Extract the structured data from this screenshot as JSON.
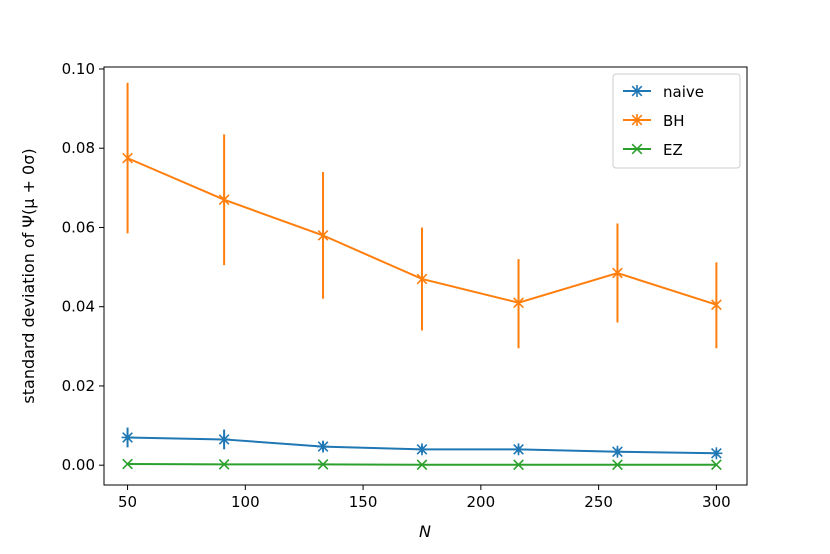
{
  "chart_data": {
    "type": "line",
    "title": "",
    "xlabel": "N",
    "ylabel": "standard deviation of Ψ(μ + 0σ)",
    "xlim": [
      40,
      313
    ],
    "ylim": [
      -0.005,
      0.1005
    ],
    "xticks": [
      50,
      100,
      150,
      200,
      250,
      300
    ],
    "xtick_labels": [
      "50",
      "100",
      "150",
      "200",
      "250",
      "300"
    ],
    "yticks": [
      0.0,
      0.02,
      0.04,
      0.06,
      0.08,
      0.1
    ],
    "ytick_labels": [
      "0.00",
      "0.02",
      "0.04",
      "0.06",
      "0.08",
      "0.10"
    ],
    "grid": false,
    "legend_position": "top-right",
    "x": [
      50,
      91,
      133,
      175,
      216,
      258,
      300
    ],
    "series": [
      {
        "name": "naive",
        "color": "#1f77b4",
        "marker": "star",
        "values": [
          0.007,
          0.0065,
          0.0047,
          0.004,
          0.004,
          0.0034,
          0.003
        ],
        "err_low": [
          0.0045,
          0.004,
          0.0035,
          0.003,
          0.003,
          0.0025,
          0.0022
        ],
        "err_high": [
          0.0095,
          0.009,
          0.006,
          0.005,
          0.005,
          0.0043,
          0.0039
        ]
      },
      {
        "name": "BH",
        "color": "#ff7f0e",
        "marker": "x-star",
        "values": [
          0.0775,
          0.067,
          0.058,
          0.047,
          0.041,
          0.0485,
          0.0405
        ],
        "err_low": [
          0.0585,
          0.0505,
          0.042,
          0.034,
          0.0295,
          0.036,
          0.0295
        ],
        "err_high": [
          0.0965,
          0.0835,
          0.074,
          0.06,
          0.052,
          0.061,
          0.0512
        ]
      },
      {
        "name": "EZ",
        "color": "#2ca02c",
        "marker": "x",
        "values": [
          0.0003,
          0.0002,
          0.0002,
          0.0001,
          0.0001,
          0.0001,
          0.0001
        ],
        "err_low": [
          0.0001,
          0.0001,
          0.0001,
          0.0,
          0.0,
          0.0,
          0.0
        ],
        "err_high": [
          0.0005,
          0.0003,
          0.0003,
          0.0002,
          0.0002,
          0.0002,
          0.0002
        ]
      }
    ]
  }
}
